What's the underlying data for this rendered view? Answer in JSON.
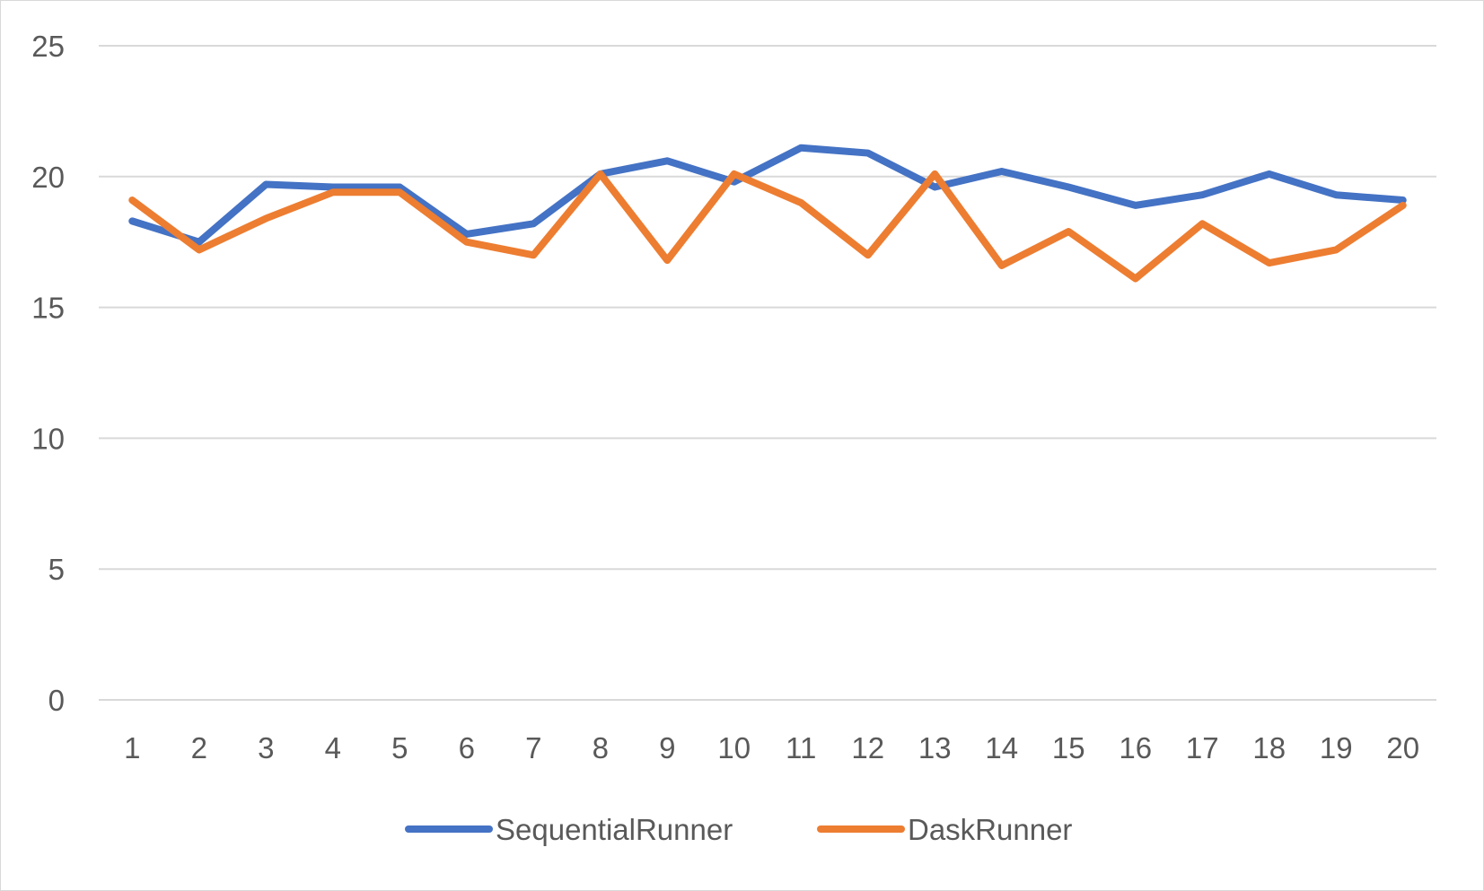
{
  "chart_data": {
    "type": "line",
    "title": "",
    "xlabel": "",
    "ylabel": "",
    "categories": [
      "1",
      "2",
      "3",
      "4",
      "5",
      "6",
      "7",
      "8",
      "9",
      "10",
      "11",
      "12",
      "13",
      "14",
      "15",
      "16",
      "17",
      "18",
      "19",
      "20"
    ],
    "ylim": [
      0,
      25
    ],
    "yticks": [
      "0",
      "5",
      "10",
      "15",
      "20",
      "25"
    ],
    "grid": true,
    "legend_position": "bottom",
    "series": [
      {
        "name": "SequentialRunner",
        "color": "#4472C4",
        "values": [
          18.3,
          17.5,
          19.7,
          19.6,
          19.6,
          17.8,
          18.2,
          20.1,
          20.6,
          19.8,
          21.1,
          20.9,
          19.6,
          20.2,
          19.6,
          18.9,
          19.3,
          20.1,
          19.3,
          19.1
        ]
      },
      {
        "name": "DaskRunner",
        "color": "#ED7D31",
        "values": [
          19.1,
          17.2,
          18.4,
          19.4,
          19.4,
          17.5,
          17.0,
          20.1,
          16.8,
          20.1,
          19.0,
          17.0,
          20.1,
          16.6,
          17.9,
          16.1,
          18.2,
          16.7,
          17.2,
          18.9
        ]
      }
    ]
  }
}
